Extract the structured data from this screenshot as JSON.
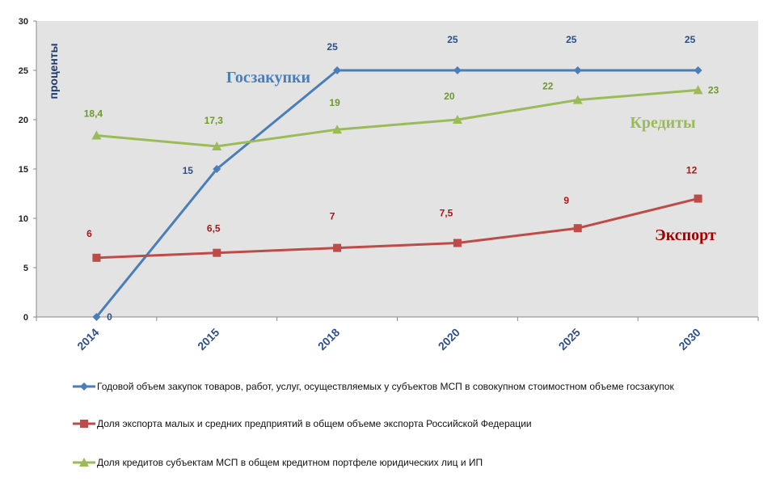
{
  "chart_data": {
    "type": "line",
    "categories": [
      "2014",
      "2015",
      "2018",
      "2020",
      "2025",
      "2030"
    ],
    "ylabel": "проценты",
    "ylim": [
      0,
      30
    ],
    "yticks": [
      0,
      5,
      10,
      15,
      20,
      25,
      30
    ],
    "grid": false,
    "legend_position": "bottom",
    "series": [
      {
        "name": "Годовой объем закупок товаров, работ, услуг, осуществляемых у субъектов МСП в совокупном стоимостном объеме госзакупок",
        "tag": "Госзакупки",
        "values": [
          0,
          15,
          25,
          25,
          25,
          25
        ],
        "labels": [
          "0",
          "15",
          "25",
          "25",
          "25",
          "25"
        ],
        "color": "#4a7ebb",
        "label_color": "#2e4f88",
        "tag_color": "#4a7ebb",
        "marker": "diamond"
      },
      {
        "name": "Доля экспорта малых и средних предприятий в общем объеме экспорта Российской Федерации",
        "tag": "Экспорт",
        "values": [
          6,
          6.5,
          7,
          7.5,
          9,
          12
        ],
        "labels": [
          "6",
          "6,5",
          "7",
          "7,5",
          "9",
          "12"
        ],
        "color": "#be4b48",
        "label_color": "#a81818",
        "tag_color": "#a00000",
        "marker": "square"
      },
      {
        "name": "Доля кредитов субъектам МСП в общем кредитном портфеле юридических лиц и ИП",
        "tag": "Кредиты",
        "values": [
          18.4,
          17.3,
          19,
          20,
          22,
          23
        ],
        "labels": [
          "18,4",
          "17,3",
          "19",
          "20",
          "22",
          "23"
        ],
        "color": "#9bbb59",
        "label_color": "#6e9a2a",
        "tag_color": "#9bbb59",
        "marker": "triangle"
      }
    ]
  }
}
